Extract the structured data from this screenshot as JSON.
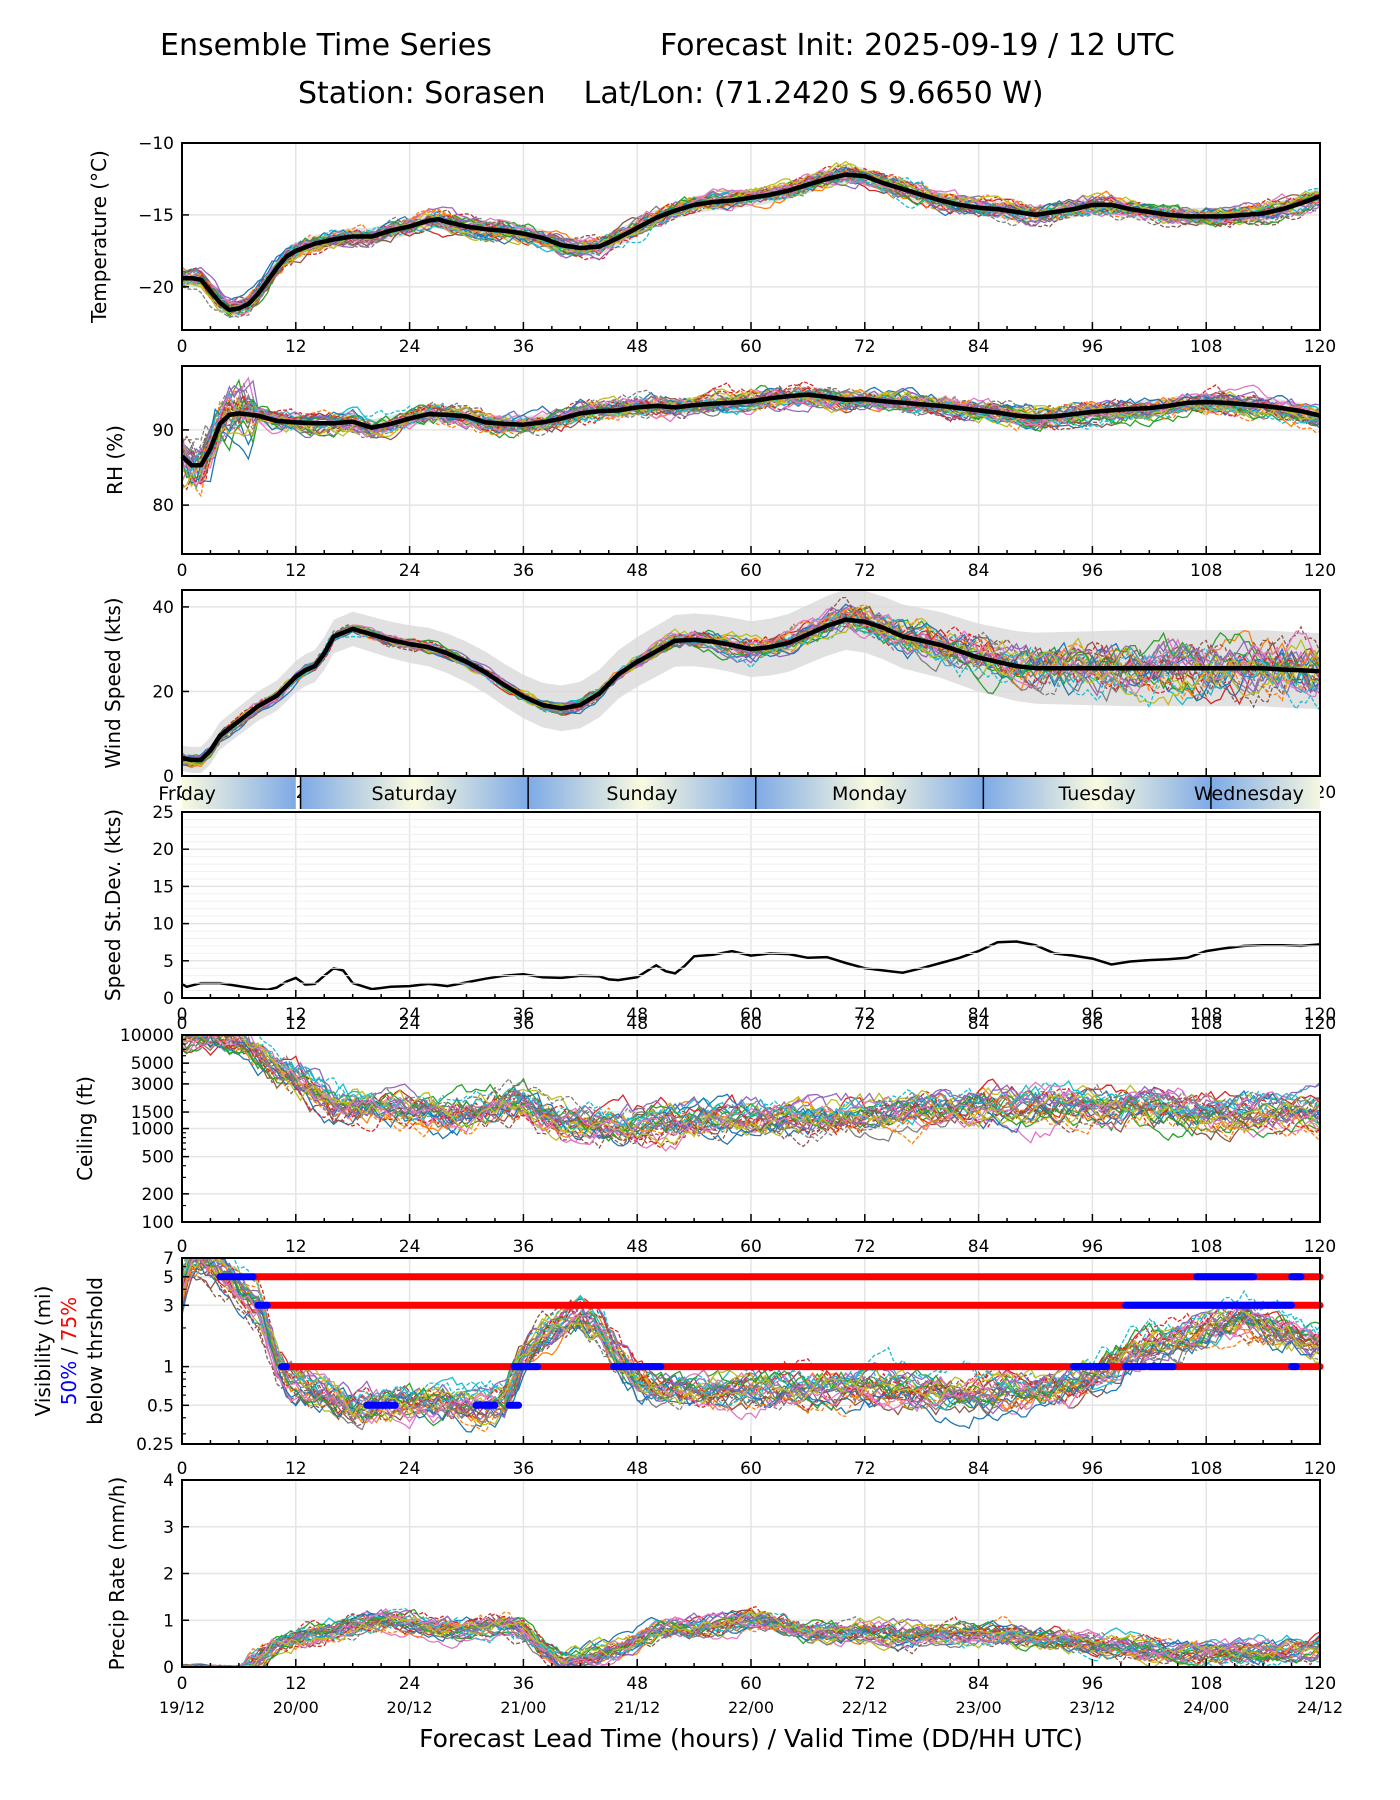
{
  "header": {
    "title_left": "Ensemble Time Series",
    "title_right": "Forecast Init: 2025-09-19 / 12 UTC",
    "subtitle": "Station: Sorasen    Lat/Lon: (71.2420 S 9.6650 W)"
  },
  "colors": {
    "mean_line": "#000000",
    "spread_band": "#d9d9d9",
    "grid": "#e5e5e5",
    "threshold_75": "#ff0000",
    "threshold_50": "#0000ff",
    "member_palette": [
      "#1f77b4",
      "#ff7f0e",
      "#2ca02c",
      "#d62728",
      "#9467bd",
      "#8c564b",
      "#e377c2",
      "#7f7f7f",
      "#bcbd22",
      "#17becf"
    ],
    "day_band_light": "#fafae0",
    "day_band_dark": "#7eaae6"
  },
  "x_axis": {
    "label": "Forecast Lead Time (hours) / Valid Time (DD/HH UTC)",
    "range": [
      0,
      120
    ],
    "ticks": [
      0,
      12,
      24,
      36,
      48,
      60,
      72,
      84,
      96,
      108,
      120
    ],
    "valid_time_labels": [
      "19/12",
      "20/00",
      "20/12",
      "21/00",
      "21/12",
      "22/00",
      "22/12",
      "23/00",
      "23/12",
      "24/00",
      "24/12"
    ]
  },
  "day_band": {
    "days": [
      {
        "label": "Friday",
        "start": 0,
        "end": 12.5
      },
      {
        "label": "Saturday",
        "start": 12.5,
        "end": 36.5
      },
      {
        "label": "Sunday",
        "start": 36.5,
        "end": 60.5
      },
      {
        "label": "Monday",
        "start": 60.5,
        "end": 84.5
      },
      {
        "label": "Tuesday",
        "start": 84.5,
        "end": 108.5
      },
      {
        "label": "Wednesday",
        "start": 108.5,
        "end": 120
      }
    ]
  },
  "chart_data": [
    {
      "id": "temperature",
      "type": "line",
      "ylabel": "Temperature (°C)",
      "ylim": [
        -23,
        -10
      ],
      "yticks": [
        -20,
        -15,
        -10
      ],
      "ytick_labels": [
        "−20",
        "−15",
        "−10"
      ],
      "grid": true,
      "members": 30,
      "mean": {
        "x": [
          0,
          1,
          2,
          3,
          4,
          5,
          6,
          7,
          8,
          9,
          10,
          11,
          12,
          14,
          16,
          18,
          20,
          22,
          24,
          26,
          27,
          28,
          30,
          32,
          34,
          36,
          38,
          40,
          42,
          44,
          46,
          48,
          50,
          52,
          54,
          56,
          58,
          60,
          62,
          64,
          66,
          68,
          70,
          72,
          74,
          76,
          78,
          80,
          82,
          84,
          86,
          88,
          90,
          92,
          94,
          96,
          98,
          100,
          102,
          104,
          106,
          108,
          110,
          112,
          114,
          116,
          118,
          120
        ],
        "y": [
          -19.4,
          -19.4,
          -19.5,
          -20.3,
          -21.1,
          -21.6,
          -21.5,
          -21.2,
          -20.5,
          -19.6,
          -18.7,
          -17.9,
          -17.5,
          -17.0,
          -16.7,
          -16.5,
          -16.5,
          -16.1,
          -15.8,
          -15.4,
          -15.3,
          -15.5,
          -15.8,
          -16.0,
          -16.1,
          -16.3,
          -16.6,
          -17.1,
          -17.3,
          -17.2,
          -16.6,
          -15.9,
          -15.2,
          -14.7,
          -14.3,
          -14.1,
          -14.0,
          -13.8,
          -13.6,
          -13.3,
          -12.9,
          -12.5,
          -12.2,
          -12.3,
          -12.8,
          -13.2,
          -13.6,
          -14.0,
          -14.3,
          -14.5,
          -14.6,
          -14.8,
          -15.0,
          -14.8,
          -14.6,
          -14.3,
          -14.3,
          -14.6,
          -14.8,
          -15.0,
          -15.1,
          -15.1,
          -15.1,
          -15.0,
          -14.9,
          -14.6,
          -14.2,
          -13.7
        ]
      },
      "spread": 0.6,
      "member_noise": 0.7
    },
    {
      "id": "rh",
      "type": "line",
      "ylabel": "RH (%)",
      "ylim": [
        73.5,
        98.5
      ],
      "yticks": [
        80,
        90
      ],
      "ytick_labels": [
        "80",
        "90"
      ],
      "grid": true,
      "members": 30,
      "mean": {
        "x": [
          0,
          1,
          2,
          3,
          4,
          5,
          6,
          8,
          10,
          12,
          14,
          16,
          18,
          20,
          22,
          24,
          26,
          28,
          30,
          32,
          34,
          36,
          38,
          40,
          42,
          44,
          46,
          48,
          50,
          52,
          54,
          56,
          58,
          60,
          62,
          64,
          66,
          68,
          70,
          72,
          74,
          76,
          78,
          80,
          82,
          84,
          86,
          88,
          90,
          92,
          94,
          96,
          98,
          100,
          102,
          104,
          106,
          108,
          110,
          112,
          114,
          116,
          118,
          120
        ],
        "y": [
          86.5,
          85.3,
          85.3,
          87.5,
          90.8,
          92.0,
          92.2,
          91.9,
          91.2,
          91.0,
          90.9,
          90.9,
          91.1,
          90.3,
          90.8,
          91.5,
          92.1,
          92.0,
          91.8,
          91.0,
          90.8,
          90.7,
          91.0,
          91.5,
          92.2,
          92.5,
          92.6,
          93.0,
          93.2,
          93.0,
          93.3,
          93.5,
          93.6,
          93.8,
          94.2,
          94.5,
          94.7,
          94.4,
          94.0,
          94.1,
          93.8,
          93.6,
          93.4,
          93.2,
          92.9,
          92.6,
          92.3,
          91.9,
          91.7,
          91.8,
          92.1,
          92.4,
          92.6,
          92.8,
          92.9,
          93.2,
          93.6,
          93.7,
          93.6,
          93.4,
          93.2,
          92.9,
          92.5,
          91.9
        ]
      },
      "spread": 1.1,
      "member_noise": 1.5
    },
    {
      "id": "wind_speed",
      "type": "line",
      "ylabel": "Wind Speed (kts)",
      "ylim": [
        0,
        44
      ],
      "yticks": [
        0,
        20,
        40
      ],
      "ytick_labels": [
        "0",
        "20",
        "40"
      ],
      "grid": true,
      "members": 30,
      "mean": {
        "x": [
          0,
          1,
          2,
          3,
          4,
          6,
          8,
          10,
          12,
          13,
          14,
          15,
          16,
          18,
          20,
          22,
          24,
          26,
          28,
          30,
          32,
          34,
          36,
          38,
          40,
          42,
          44,
          46,
          48,
          50,
          52,
          54,
          56,
          58,
          60,
          62,
          64,
          66,
          68,
          70,
          72,
          74,
          76,
          78,
          80,
          82,
          84,
          86,
          88,
          90,
          92,
          94,
          96,
          98,
          100,
          102,
          104,
          106,
          108,
          110,
          112,
          114,
          116,
          118,
          120
        ],
        "y": [
          4.2,
          3.8,
          3.8,
          6.0,
          9.5,
          13.0,
          16.5,
          19.0,
          23.5,
          25.0,
          26.0,
          29.0,
          33.0,
          34.8,
          33.5,
          32.2,
          31.2,
          30.5,
          29.0,
          27.0,
          24.5,
          21.5,
          18.8,
          16.8,
          16.0,
          16.8,
          19.5,
          24.0,
          27.0,
          29.5,
          32.0,
          32.2,
          31.8,
          31.0,
          30.0,
          30.5,
          31.5,
          33.5,
          35.5,
          37.0,
          36.5,
          35.0,
          33.0,
          32.0,
          31.0,
          29.5,
          28.0,
          27.0,
          26.0,
          25.5,
          25.5,
          25.5,
          25.5,
          25.5,
          25.5,
          25.5,
          25.5,
          25.5,
          25.5,
          25.5,
          25.5,
          25.5,
          25.2,
          25.0,
          24.8
        ]
      },
      "spread_min": 3,
      "spread_max": 9,
      "member_noise": 2.2
    },
    {
      "id": "speed_stdev",
      "type": "line",
      "ylabel": "Speed St.Dev. (kts)",
      "ylim": [
        0,
        25
      ],
      "yticks": [
        0,
        5,
        10,
        15,
        20,
        25
      ],
      "ytick_labels": [
        "0",
        "5",
        "10",
        "15",
        "20",
        "25"
      ],
      "grid": true,
      "series": {
        "x": [
          0,
          0.5,
          2,
          4,
          6,
          8,
          9,
          10,
          11,
          12,
          13,
          14,
          15,
          16,
          17,
          18,
          20,
          22,
          24,
          26,
          28,
          30,
          32,
          34,
          36,
          38,
          40,
          42,
          44,
          45,
          46,
          48,
          49,
          50,
          51,
          52,
          53,
          54,
          56,
          58,
          60,
          62,
          64,
          66,
          68,
          70,
          72,
          74,
          76,
          78,
          80,
          82,
          84,
          86,
          88,
          90,
          92,
          94,
          96,
          98,
          100,
          102,
          104,
          106,
          108,
          110,
          112,
          114,
          116,
          118,
          120
        ],
        "y": [
          1.9,
          1.5,
          2.0,
          2.0,
          1.6,
          1.2,
          1.1,
          1.4,
          2.2,
          2.7,
          1.8,
          1.9,
          3.0,
          4.0,
          3.7,
          2.0,
          1.2,
          1.5,
          1.6,
          1.9,
          1.6,
          2.1,
          2.6,
          3.0,
          3.2,
          2.8,
          2.7,
          3.0,
          2.9,
          2.5,
          2.4,
          2.8,
          3.6,
          4.4,
          3.6,
          3.3,
          4.3,
          5.6,
          5.8,
          6.3,
          5.7,
          6.0,
          5.9,
          5.4,
          5.5,
          4.7,
          4.0,
          3.7,
          3.4,
          4.0,
          4.7,
          5.4,
          6.3,
          7.5,
          7.6,
          7.1,
          6.0,
          5.7,
          5.3,
          4.5,
          4.9,
          5.1,
          5.2,
          5.4,
          6.3,
          6.7,
          7.0,
          7.1,
          7.1,
          7.0,
          7.2
        ]
      }
    },
    {
      "id": "ceiling",
      "type": "line",
      "scale": "log",
      "ylabel": "Ceiling (ft)",
      "ylim": [
        100,
        10000
      ],
      "yticks": [
        100,
        200,
        500,
        1000,
        1500,
        3000,
        5000,
        10000
      ],
      "ytick_labels": [
        "100",
        "200",
        "500",
        "1000",
        "1500",
        "3000",
        "5000",
        "10000"
      ],
      "grid": true,
      "members": 30,
      "median": {
        "x": [
          0,
          4,
          6,
          8,
          10,
          12,
          14,
          16,
          18,
          20,
          24,
          28,
          32,
          34,
          36,
          38,
          40,
          42,
          44,
          46,
          48,
          52,
          56,
          60,
          66,
          72,
          78,
          84,
          90,
          96,
          102,
          108,
          114,
          120
        ],
        "y": [
          10000,
          10000,
          9000,
          6500,
          4500,
          3500,
          2600,
          1900,
          1800,
          1800,
          1550,
          1450,
          1600,
          1900,
          2000,
          1400,
          1200,
          1150,
          1100,
          1100,
          1100,
          1150,
          1200,
          1250,
          1300,
          1350,
          1450,
          1600,
          1700,
          1700,
          1600,
          1500,
          1500,
          1450
        ]
      },
      "member_noise_decades": 0.12
    },
    {
      "id": "visibility",
      "type": "line",
      "scale": "log",
      "ylabel_line1": "Visibility (mi)",
      "ylabel_line2_a": "50%",
      "ylabel_line2_sep": " / ",
      "ylabel_line2_b": "75%",
      "ylabel_line3": "below thrshold",
      "ylim": [
        0.25,
        7
      ],
      "yticks": [
        0.25,
        0.5,
        1,
        3,
        5,
        7
      ],
      "ytick_labels": [
        "0.25",
        "0.5",
        "1",
        "3",
        "5",
        "7"
      ],
      "grid": true,
      "members": 30,
      "median": {
        "x": [
          0,
          1,
          2,
          4,
          6,
          8,
          9,
          10,
          11,
          12,
          14,
          16,
          18,
          20,
          24,
          28,
          32,
          34,
          35,
          36,
          38,
          40,
          42,
          44,
          46,
          48,
          50,
          54,
          60,
          66,
          72,
          78,
          84,
          90,
          94,
          96,
          98,
          100,
          104,
          108,
          112,
          116,
          120
        ],
        "y": [
          4,
          6.5,
          7,
          5.5,
          4,
          3,
          1.8,
          1.1,
          0.85,
          0.78,
          0.7,
          0.6,
          0.5,
          0.5,
          0.52,
          0.52,
          0.5,
          0.55,
          0.8,
          1.2,
          1.8,
          2.2,
          2.5,
          2.0,
          1.2,
          0.8,
          0.7,
          0.65,
          0.65,
          0.65,
          0.7,
          0.65,
          0.65,
          0.65,
          0.7,
          0.8,
          1.0,
          1.3,
          1.6,
          2.0,
          2.4,
          2.0,
          1.6
        ]
      },
      "member_noise_decades": 0.09,
      "thresholds": [
        {
          "value": 5,
          "p75": [
            [
              7.5,
              120
            ]
          ],
          "p50": [
            [
              4,
              7.5
            ],
            [
              107,
              113
            ],
            [
              117,
              118
            ]
          ]
        },
        {
          "value": 3,
          "p75": [
            [
              9,
              120
            ]
          ],
          "p50": [
            [
              8,
              9
            ],
            [
              99.5,
              117
            ]
          ]
        },
        {
          "value": 1,
          "p75": [
            [
              11,
              120
            ]
          ],
          "p50": [
            [
              10.5,
              11
            ],
            [
              35,
              37.5
            ],
            [
              45.5,
              50.5
            ],
            [
              94,
              97.5
            ],
            [
              99.5,
              101.5
            ],
            [
              102,
              104.5
            ],
            [
              117,
              117.5
            ]
          ]
        },
        {
          "value": 0.5,
          "p75": [],
          "p50": [
            [
              19.5,
              22.5
            ],
            [
              31,
              33
            ],
            [
              34.5,
              35.5
            ]
          ]
        }
      ]
    },
    {
      "id": "precip_rate",
      "type": "line",
      "ylabel": "Precip Rate (mm/h)",
      "ylim": [
        0,
        4
      ],
      "yticks": [
        0,
        1,
        2,
        3,
        4
      ],
      "ytick_labels": [
        "0",
        "1",
        "2",
        "3",
        "4"
      ],
      "grid": true,
      "members": 30,
      "median": {
        "x": [
          0,
          4,
          6,
          8,
          10,
          12,
          14,
          16,
          18,
          20,
          22,
          24,
          26,
          28,
          30,
          32,
          34,
          36,
          38,
          40,
          42,
          44,
          46,
          48,
          50,
          52,
          54,
          56,
          58,
          60,
          62,
          64,
          66,
          68,
          70,
          72,
          76,
          80,
          84,
          88,
          92,
          96,
          100,
          104,
          108,
          112,
          116,
          120
        ],
        "y": [
          0,
          0,
          0,
          0.2,
          0.5,
          0.6,
          0.7,
          0.8,
          0.9,
          1.0,
          1.05,
          1.0,
          0.9,
          0.85,
          0.8,
          0.85,
          0.9,
          0.8,
          0.4,
          0.15,
          0.2,
          0.3,
          0.4,
          0.6,
          0.75,
          0.8,
          0.85,
          0.9,
          0.95,
          1.0,
          0.95,
          0.85,
          0.75,
          0.7,
          0.7,
          0.75,
          0.7,
          0.7,
          0.7,
          0.65,
          0.6,
          0.5,
          0.4,
          0.3,
          0.3,
          0.3,
          0.35,
          0.45
        ]
      },
      "member_noise": 0.18
    }
  ]
}
